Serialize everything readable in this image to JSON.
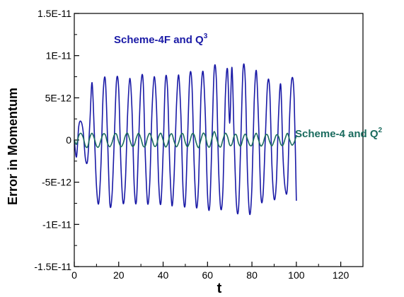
{
  "chart_data": {
    "type": "line",
    "xlabel": "t",
    "ylabel": "Error in Momentum",
    "xlim": [
      0,
      130
    ],
    "ylim": [
      -1.5e-11,
      1.5e-11
    ],
    "x_ticks": [
      0,
      20,
      40,
      60,
      80,
      100,
      120
    ],
    "x_tick_labels": [
      "0",
      "20",
      "40",
      "60",
      "80",
      "100",
      "120"
    ],
    "y_ticks": [
      -1.5e-11,
      -1e-11,
      -5e-12,
      0,
      5e-12,
      1e-11,
      1.5e-11
    ],
    "y_tick_labels": [
      "-1.5E-11",
      "-1E-11",
      "-5E-12",
      "0",
      "5E-12",
      "1E-11",
      "1.5E-11"
    ],
    "grid": false,
    "colors": {
      "scheme_4f": "#1a1aa6",
      "scheme_4": "#1a6b5e"
    },
    "series": [
      {
        "name": "Scheme-4F and Q³",
        "label_main": "Scheme-4F and Q",
        "label_sup": "3",
        "x": [
          0,
          1,
          2,
          3,
          4,
          5,
          6,
          7,
          8,
          9,
          10,
          11,
          12,
          13,
          14,
          15,
          16,
          17,
          18,
          19,
          20,
          21,
          22,
          23,
          24,
          25,
          26,
          27,
          28,
          29,
          30,
          31,
          32,
          33,
          34,
          35,
          36,
          37,
          38,
          39,
          40,
          41,
          42,
          43,
          44,
          45,
          46,
          47,
          48,
          49,
          50,
          51,
          52,
          53,
          54,
          55,
          56,
          57,
          58,
          59,
          60,
          61,
          62,
          63,
          64,
          65,
          66,
          67,
          68,
          69,
          70,
          71,
          72,
          73,
          74,
          75,
          76,
          77,
          78,
          79,
          80,
          81,
          82,
          83,
          84,
          85,
          86,
          87,
          88,
          89,
          90,
          91,
          92,
          93,
          94,
          95,
          96,
          97,
          98,
          99,
          100
        ],
        "y": [
          0,
          -2e-12,
          1.6e-12,
          2.2e-12,
          1e-12,
          -2.2e-12,
          -2.4e-12,
          2e-12,
          6.8e-12,
          1e-12,
          -5.5e-12,
          -7.5e-12,
          -3e-12,
          5.5e-12,
          7.1e-12,
          0,
          -7.5e-12,
          -6.5e-12,
          0,
          7e-12,
          6e-12,
          -3e-12,
          -7.5e-12,
          -5e-12,
          3e-12,
          7.3e-12,
          3.5e-12,
          -5.5e-12,
          -7.2e-12,
          0,
          6.5e-12,
          7e-12,
          -2e-12,
          -7.5e-12,
          -5e-12,
          3.5e-12,
          7.5e-12,
          4e-12,
          -5e-12,
          -7.5e-12,
          -1.5e-12,
          7e-12,
          6e-12,
          -3e-12,
          -7.8e-12,
          -4e-12,
          4e-12,
          7.7e-12,
          3e-12,
          -6e-12,
          -7.5e-12,
          0,
          7.5e-12,
          6.5e-12,
          -3e-12,
          -8e-12,
          -5e-12,
          5e-12,
          8.1e-12,
          3e-12,
          -6.5e-12,
          -7.8e-12,
          0,
          8.3e-12,
          7e-12,
          -3.5e-12,
          -8.2e-12,
          -5.5e-12,
          5e-12,
          8.4e-12,
          2e-12,
          8.6e-12,
          0,
          -7.5e-12,
          -8e-12,
          0,
          8.4e-12,
          7e-12,
          -4e-12,
          -8.8e-12,
          -5.5e-12,
          4.5e-12,
          8.2e-12,
          2e-12,
          -6.5e-12,
          -6.5e-12,
          0,
          6.5e-12,
          6e-12,
          -3e-12,
          -7e-12,
          -5e-12,
          3e-12,
          6.5e-12,
          -2e-12,
          -5.8e-12,
          -5.5e-12,
          3e-12,
          7.3e-12,
          5e-12,
          -7.2e-12
        ]
      },
      {
        "name": "Scheme-4 and Q²",
        "label_main": "Scheme-4 and Q",
        "label_sup": "2",
        "x": [
          0,
          1,
          2,
          3,
          4,
          5,
          6,
          7,
          8,
          9,
          10,
          11,
          12,
          13,
          14,
          15,
          16,
          17,
          18,
          19,
          20,
          21,
          22,
          23,
          24,
          25,
          26,
          27,
          28,
          29,
          30,
          31,
          32,
          33,
          34,
          35,
          36,
          37,
          38,
          39,
          40,
          41,
          42,
          43,
          44,
          45,
          46,
          47,
          48,
          49,
          50,
          51,
          52,
          53,
          54,
          55,
          56,
          57,
          58,
          59,
          60,
          61,
          62,
          63,
          64,
          65,
          66,
          67,
          68,
          69,
          70,
          71,
          72,
          73,
          74,
          75,
          76,
          77,
          78,
          79,
          80,
          81,
          82,
          83,
          84,
          85,
          86,
          87,
          88,
          89,
          90,
          91,
          92,
          93,
          94,
          95,
          96,
          97,
          98,
          99,
          100
        ],
        "y": [
          0,
          -5e-13,
          5e-13,
          8e-13,
          3e-13,
          -7e-13,
          -8e-13,
          3e-13,
          8e-13,
          2e-13,
          -7e-13,
          -8e-13,
          0,
          7e-13,
          6e-13,
          -4e-13,
          -8e-13,
          -3e-13,
          6e-13,
          7e-13,
          -2e-13,
          -8e-13,
          -4e-13,
          5e-13,
          8e-13,
          0,
          -7e-13,
          -6e-13,
          3e-13,
          8e-13,
          2e-13,
          -7e-13,
          -7e-13,
          3e-13,
          8e-13,
          1e-13,
          -7e-13,
          -6e-13,
          4e-13,
          8e-13,
          0,
          -8e-13,
          -5e-13,
          5e-13,
          7e-13,
          -2e-13,
          -8e-13,
          -3e-13,
          6e-13,
          7e-13,
          -3e-13,
          -8e-13,
          -2e-13,
          7e-13,
          6e-13,
          -4e-13,
          -9e-13,
          0,
          8e-13,
          5e-13,
          -6e-13,
          -8e-13,
          2e-13,
          1e-12,
          3e-13,
          -6e-13,
          -8e-13,
          1e-13,
          8e-13,
          4e-13,
          -6e-13,
          -5e-13,
          5e-13,
          6e-13,
          -4e-13,
          -7e-13,
          2e-13,
          7e-13,
          1e-13,
          -6e-13,
          -6e-13,
          3e-13,
          8e-13,
          0,
          -7e-13,
          -4e-13,
          5e-13,
          6e-13,
          -2e-13,
          -7e-13,
          -1e-13,
          6e-13,
          4e-13,
          -5e-13,
          -6e-13,
          2e-13,
          8e-13,
          0,
          -6e-13,
          -3e-13,
          5e-13
        ]
      }
    ]
  }
}
